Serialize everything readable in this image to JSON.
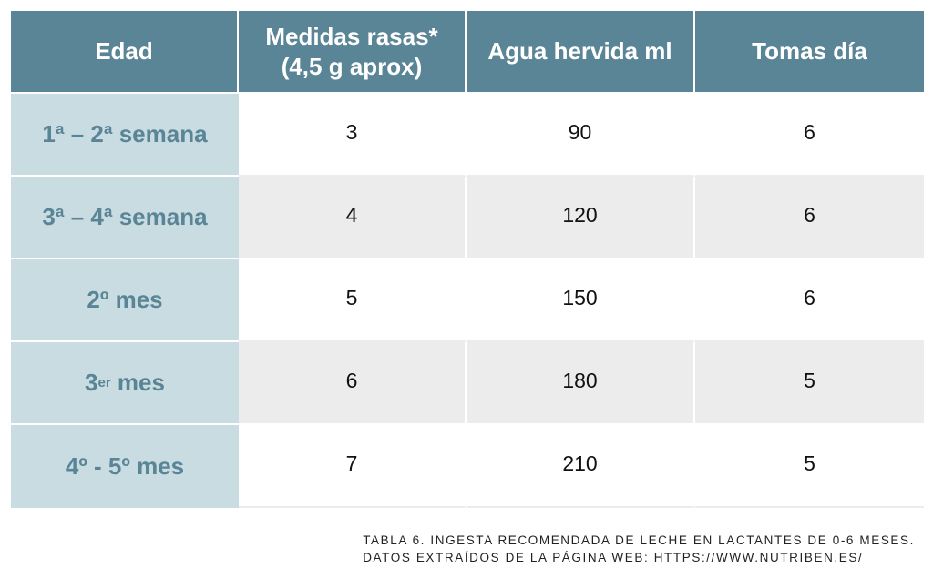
{
  "table": {
    "headers": [
      "Edad",
      "Medidas rasas*",
      "(4,5 g aprox)",
      "Agua hervida ml",
      "Tomas día"
    ],
    "rows": [
      {
        "age": "1ª – 2ª semana",
        "measures": "3",
        "water_ml": "90",
        "feeds_per_day": "6"
      },
      {
        "age": "3ª – 4ª semana",
        "measures": "4",
        "water_ml": "120",
        "feeds_per_day": "6"
      },
      {
        "age": "2º mes",
        "measures": "5",
        "water_ml": "150",
        "feeds_per_day": "6"
      },
      {
        "age_prefix": "3",
        "age_sup": "er",
        "age_suffix": " mes",
        "measures": "6",
        "water_ml": "180",
        "feeds_per_day": "5"
      },
      {
        "age": "4º - 5º mes",
        "measures": "7",
        "water_ml": "210",
        "feeds_per_day": "5"
      }
    ]
  },
  "caption": {
    "line1": "TABLA 6. INGESTA RECOMENDADA DE LECHE EN LACTANTES DE 0-6 MESES.",
    "line2_prefix": "DATOS EXTRAÍDOS DE LA PÁGINA WEB: ",
    "link": "HTTPS://WWW.NUTRIBEN.ES/"
  },
  "colors": {
    "header_bg": "#5a8597",
    "label_bg": "#c8dce2",
    "label_text": "#5a8597",
    "stripe_bg": "#ececec"
  }
}
